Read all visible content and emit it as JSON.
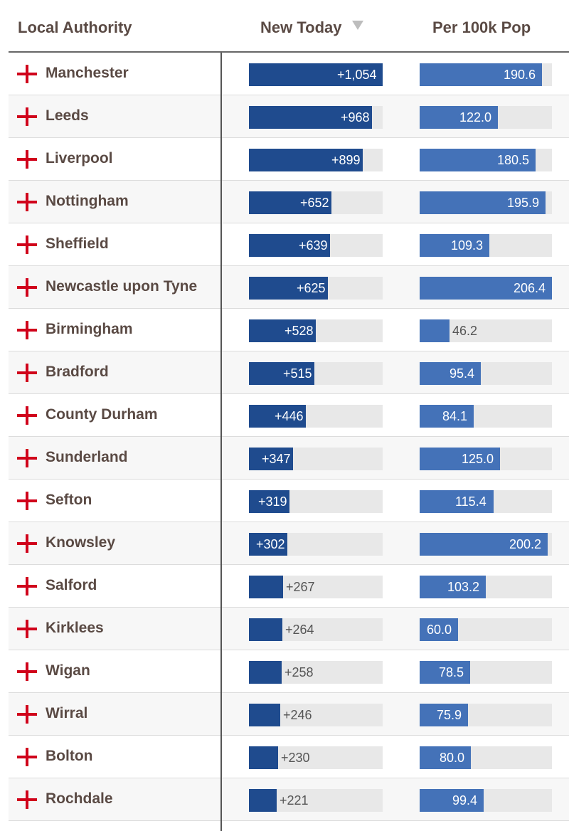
{
  "colors": {
    "new_bar": "#1f4b8e",
    "per_bar": "#4472b8",
    "track": "#e8e8e8",
    "flag": "#d0021b"
  },
  "header": {
    "authority": "Local Authority",
    "new_today": "New Today",
    "per_100k": "Per 100k Pop",
    "sort_icon": "sort-descending-icon"
  },
  "chart_data": {
    "type": "bar",
    "categories": [
      "Manchester",
      "Leeds",
      "Liverpool",
      "Nottingham",
      "Sheffield",
      "Newcastle upon Tyne",
      "Birmingham",
      "Bradford",
      "County Durham",
      "Sunderland",
      "Sefton",
      "Knowsley",
      "Salford",
      "Kirklees",
      "Wigan",
      "Wirral",
      "Bolton",
      "Rochdale"
    ],
    "series": [
      {
        "name": "New Today",
        "values": [
          1054,
          968,
          899,
          652,
          639,
          625,
          528,
          515,
          446,
          347,
          319,
          302,
          267,
          264,
          258,
          246,
          230,
          221
        ],
        "labels": [
          "+1,054",
          "+968",
          "+899",
          "+652",
          "+639",
          "+625",
          "+528",
          "+515",
          "+446",
          "+347",
          "+319",
          "+302",
          "+267",
          "+264",
          "+258",
          "+246",
          "+230",
          "+221"
        ],
        "max": 1054
      },
      {
        "name": "Per 100k Pop",
        "values": [
          190.6,
          122.0,
          180.5,
          195.9,
          109.3,
          206.4,
          46.2,
          95.4,
          84.1,
          125.0,
          115.4,
          200.2,
          103.2,
          60.0,
          78.5,
          75.9,
          80.0,
          99.4
        ],
        "labels": [
          "190.6",
          "122.0",
          "180.5",
          "195.9",
          "109.3",
          "206.4",
          "46.2",
          "95.4",
          "84.1",
          "125.0",
          "115.4",
          "200.2",
          "103.2",
          "60.0",
          "78.5",
          "75.9",
          "80.0",
          "99.4"
        ],
        "max": 206.4
      }
    ]
  }
}
